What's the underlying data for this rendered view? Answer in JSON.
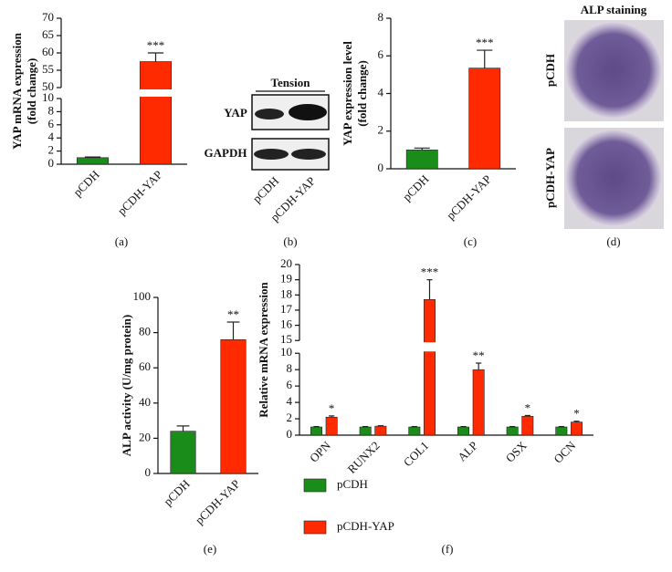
{
  "chart_data": [
    {
      "type": "bar",
      "panel_label": "(a)",
      "ylabel": [
        "YAP mRNA expression",
        "(fold change)"
      ],
      "categories": [
        "pCDH",
        "pCDH-YAP"
      ],
      "values": [
        1.0,
        57.5
      ],
      "errors": [
        0.1,
        2.5
      ],
      "colors": [
        "#1a8c1a",
        "#ff2a00"
      ],
      "ylim": [
        0,
        70
      ],
      "ybreak": [
        10,
        50
      ],
      "yticks": [
        0,
        2,
        4,
        6,
        8,
        10,
        50,
        55,
        60,
        65,
        70
      ],
      "annotations": [
        {
          "index": 1,
          "text": "***"
        }
      ]
    },
    {
      "type": "bar",
      "panel_label": "(c)",
      "ylabel": [
        "YAP expression level",
        "(fold change)"
      ],
      "categories": [
        "pCDH",
        "pCDH-YAP"
      ],
      "values": [
        1.0,
        5.35
      ],
      "errors": [
        0.1,
        0.95
      ],
      "colors": [
        "#1a8c1a",
        "#ff2a00"
      ],
      "ylim": [
        0,
        8
      ],
      "yticks": [
        0,
        2,
        4,
        6,
        8
      ],
      "annotations": [
        {
          "index": 1,
          "text": "***"
        }
      ]
    },
    {
      "type": "bar",
      "panel_label": "(e)",
      "ylabel": [
        "ALP activity (U/mg protein)"
      ],
      "categories": [
        "pCDH",
        "pCDH-YAP"
      ],
      "values": [
        24,
        76
      ],
      "errors": [
        3,
        10
      ],
      "colors": [
        "#1a8c1a",
        "#ff2a00"
      ],
      "ylim": [
        0,
        100
      ],
      "yticks": [
        0,
        20,
        40,
        60,
        80,
        100
      ],
      "annotations": [
        {
          "index": 1,
          "text": "**"
        }
      ]
    },
    {
      "type": "grouped-bar",
      "panel_label": "(f)",
      "ylabel": [
        "Relative mRNA expression"
      ],
      "categories": [
        "OPN",
        "RUNX2",
        "COL1",
        "ALP",
        "OSX",
        "OCN"
      ],
      "series": [
        {
          "name": "pCDH",
          "color": "#1a8c1a",
          "values": [
            1,
            1,
            1,
            1,
            1,
            1
          ],
          "errors": [
            0.05,
            0.05,
            0.05,
            0.05,
            0.05,
            0.05
          ]
        },
        {
          "name": "pCDH-YAP",
          "color": "#ff2a00",
          "values": [
            2.2,
            1.1,
            17.7,
            8.0,
            2.3,
            1.6
          ],
          "errors": [
            0.15,
            0.05,
            1.3,
            0.8,
            0.1,
            0.1
          ]
        }
      ],
      "ylim": [
        0,
        20
      ],
      "ybreak": [
        10,
        15
      ],
      "yticks": [
        0,
        2,
        4,
        6,
        8,
        10,
        15,
        16,
        17,
        18,
        19,
        20
      ],
      "annotations": [
        {
          "index": 0,
          "text": "*"
        },
        {
          "index": 2,
          "text": "***"
        },
        {
          "index": 3,
          "text": "**"
        },
        {
          "index": 4,
          "text": "*"
        },
        {
          "index": 5,
          "text": "*"
        }
      ],
      "legend": "bottom"
    }
  ],
  "panels": {
    "blot": {
      "panel_label": "(b)",
      "title": "Tension",
      "rows": [
        "YAP",
        "GAPDH"
      ],
      "lanes": [
        "pCDH",
        "pCDH-YAP"
      ]
    },
    "staining": {
      "panel_label": "(d)",
      "title": "ALP staining",
      "rows": [
        "pCDH",
        "pCDH-YAP"
      ]
    }
  }
}
